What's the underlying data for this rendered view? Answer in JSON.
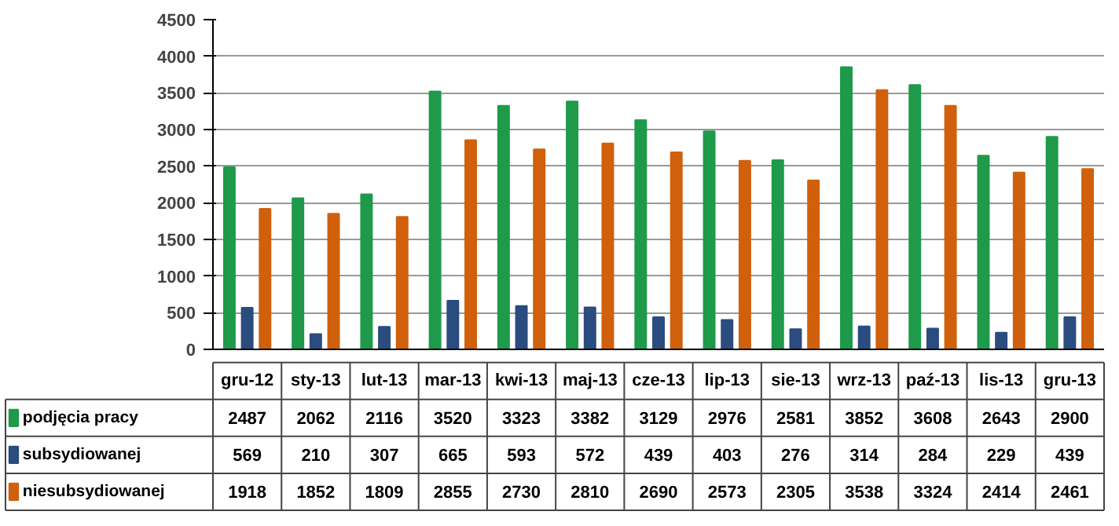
{
  "chart_data": {
    "type": "bar",
    "categories": [
      "gru-12",
      "sty-13",
      "lut-13",
      "mar-13",
      "kwi-13",
      "maj-13",
      "cze-13",
      "lip-13",
      "sie-13",
      "wrz-13",
      "paź-13",
      "lis-13",
      "gru-13"
    ],
    "series": [
      {
        "name": "podjęcia pracy",
        "color": "#1e9a4a",
        "values": [
          2487,
          2062,
          2116,
          3520,
          3323,
          3382,
          3129,
          2976,
          2581,
          3852,
          3608,
          2643,
          2900
        ]
      },
      {
        "name": "subsydiowanej",
        "color": "#2b4c7e",
        "values": [
          569,
          210,
          307,
          665,
          593,
          572,
          439,
          403,
          276,
          314,
          284,
          229,
          439
        ]
      },
      {
        "name": "niesubsydiowanej",
        "color": "#d0600c",
        "values": [
          1918,
          1852,
          1809,
          2855,
          2730,
          2810,
          2690,
          2573,
          2305,
          3538,
          3324,
          2414,
          2461
        ]
      }
    ],
    "ylim": [
      0,
      4500
    ],
    "yticks": [
      0,
      500,
      1000,
      1500,
      2000,
      2500,
      3000,
      3500,
      4000,
      4500
    ],
    "grid": "y",
    "data_labels": true,
    "legend": "bottom",
    "tick_labels": "y"
  }
}
